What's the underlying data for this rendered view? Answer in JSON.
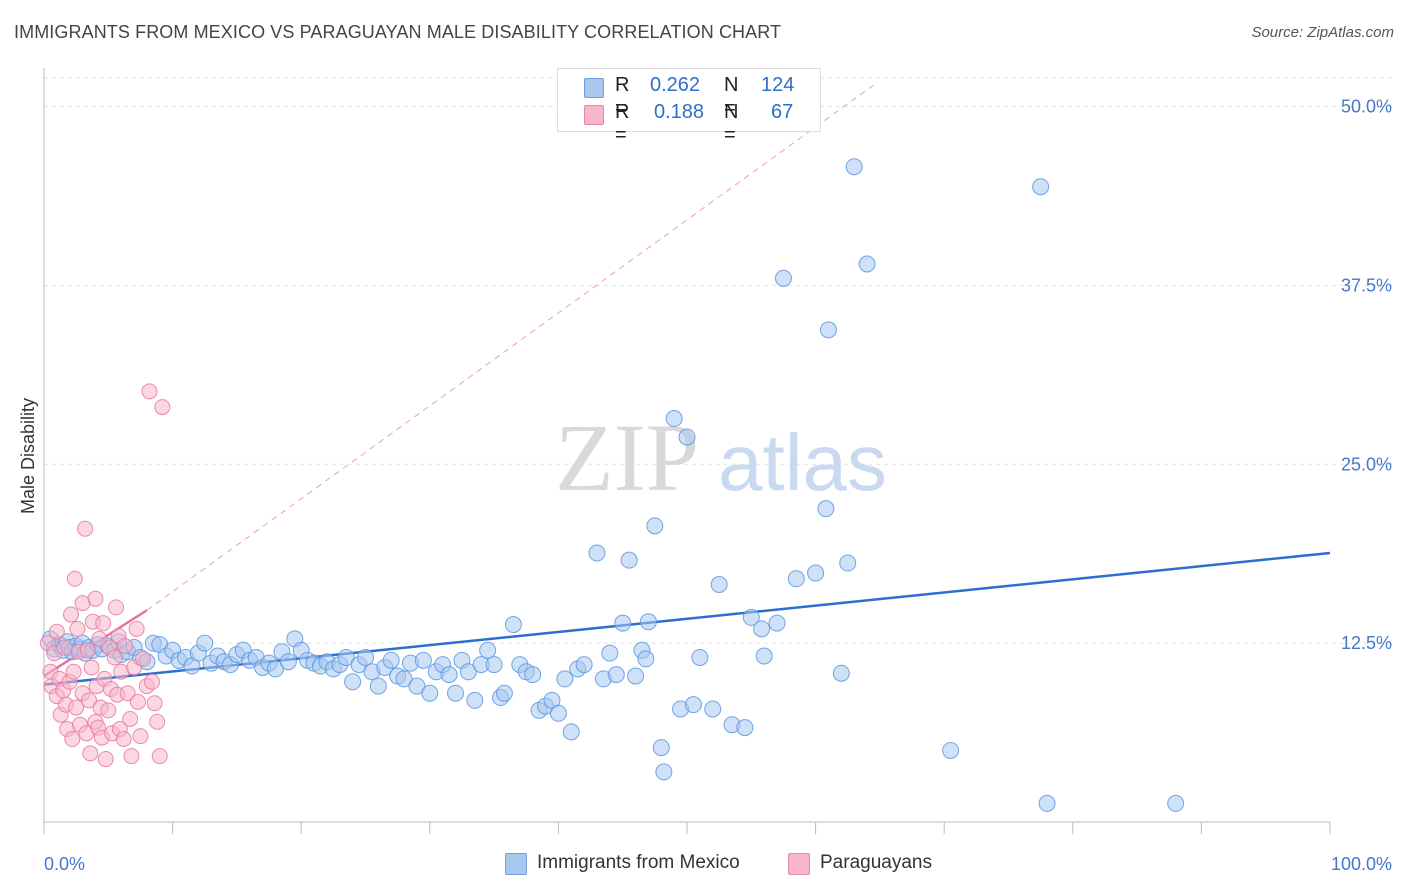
{
  "header": {
    "title": "IMMIGRANTS FROM MEXICO VS PARAGUAYAN MALE DISABILITY CORRELATION CHART",
    "source": "Source: ZipAtlas.com"
  },
  "watermark": {
    "zip": "ZIP",
    "atlas": "atlas"
  },
  "legend": {
    "rows": [
      {
        "r_label": "R =",
        "r_value": "0.262",
        "n_label": "N =",
        "n_value": "124",
        "color": "#a8c8f0"
      },
      {
        "r_label": "R =",
        "r_value": "0.188",
        "n_label": "N =",
        "n_value": "67",
        "color": "#f6b6c8"
      }
    ]
  },
  "bottom_legend": {
    "items": [
      {
        "label": "Immigrants from Mexico",
        "color": "#a8c8f0"
      },
      {
        "label": "Paraguayans",
        "color": "#f6b6c8"
      }
    ]
  },
  "chart_data": {
    "type": "scatter",
    "title": "IMMIGRANTS FROM MEXICO VS PARAGUAYAN MALE DISABILITY CORRELATION CHART",
    "xlabel": "",
    "ylabel": "Male Disability",
    "xlim": [
      0,
      100
    ],
    "ylim": [
      0,
      52
    ],
    "x_tick_labels": [
      "0.0%",
      "100.0%"
    ],
    "y_ticks": [
      12.5,
      25.0,
      37.5,
      50.0
    ],
    "y_tick_labels": [
      "12.5%",
      "25.0%",
      "37.5%",
      "50.0%"
    ],
    "grid": true,
    "series": [
      {
        "name": "Immigrants from Mexico",
        "color": "#5b95e0",
        "fill": "#a8c8f0",
        "points": [
          [
            0.5,
            12.8
          ],
          [
            0.8,
            12.1
          ],
          [
            1.2,
            12.4
          ],
          [
            1.5,
            12.0
          ],
          [
            1.8,
            12.6
          ],
          [
            2.0,
            12.2
          ],
          [
            2.2,
            11.9
          ],
          [
            2.5,
            12.3
          ],
          [
            2.8,
            12.1
          ],
          [
            3.0,
            12.5
          ],
          [
            3.2,
            11.8
          ],
          [
            3.5,
            12.2
          ],
          [
            3.8,
            12.0
          ],
          [
            4.2,
            12.4
          ],
          [
            4.5,
            12.1
          ],
          [
            5.0,
            12.3
          ],
          [
            5.5,
            12.0
          ],
          [
            5.8,
            12.6
          ],
          [
            6.0,
            11.7
          ],
          [
            6.5,
            11.9
          ],
          [
            7.0,
            12.2
          ],
          [
            7.5,
            11.5
          ],
          [
            8.0,
            11.2
          ],
          [
            8.5,
            12.5
          ],
          [
            9.0,
            12.4
          ],
          [
            9.5,
            11.6
          ],
          [
            10.0,
            12.0
          ],
          [
            10.5,
            11.3
          ],
          [
            11.0,
            11.5
          ],
          [
            11.5,
            10.9
          ],
          [
            12.0,
            11.8
          ],
          [
            12.5,
            12.5
          ],
          [
            13.0,
            11.1
          ],
          [
            13.5,
            11.6
          ],
          [
            14.0,
            11.2
          ],
          [
            14.5,
            11.0
          ],
          [
            15.0,
            11.7
          ],
          [
            15.5,
            12.0
          ],
          [
            16.0,
            11.3
          ],
          [
            16.5,
            11.5
          ],
          [
            17.0,
            10.8
          ],
          [
            17.5,
            11.1
          ],
          [
            18.0,
            10.7
          ],
          [
            18.5,
            11.9
          ],
          [
            19.0,
            11.2
          ],
          [
            19.5,
            12.8
          ],
          [
            20.0,
            12.0
          ],
          [
            20.5,
            11.3
          ],
          [
            21.0,
            11.1
          ],
          [
            21.5,
            10.9
          ],
          [
            22.0,
            11.2
          ],
          [
            22.5,
            10.7
          ],
          [
            23.0,
            11.0
          ],
          [
            23.5,
            11.5
          ],
          [
            24.0,
            9.8
          ],
          [
            24.5,
            11.0
          ],
          [
            25.0,
            11.5
          ],
          [
            25.5,
            10.5
          ],
          [
            26.0,
            9.5
          ],
          [
            26.5,
            10.8
          ],
          [
            27.0,
            11.3
          ],
          [
            27.5,
            10.2
          ],
          [
            28.0,
            10.0
          ],
          [
            28.5,
            11.1
          ],
          [
            29.0,
            9.5
          ],
          [
            29.5,
            11.3
          ],
          [
            30.0,
            9.0
          ],
          [
            30.5,
            10.5
          ],
          [
            31.0,
            11.0
          ],
          [
            31.5,
            10.3
          ],
          [
            32.0,
            9.0
          ],
          [
            32.5,
            11.3
          ],
          [
            33.0,
            10.5
          ],
          [
            33.5,
            8.5
          ],
          [
            34.0,
            11.0
          ],
          [
            34.5,
            12.0
          ],
          [
            35.0,
            11.0
          ],
          [
            35.5,
            8.7
          ],
          [
            35.8,
            9.0
          ],
          [
            36.5,
            13.8
          ],
          [
            37.0,
            11.0
          ],
          [
            37.5,
            10.5
          ],
          [
            38.0,
            10.3
          ],
          [
            38.5,
            7.8
          ],
          [
            39.0,
            8.1
          ],
          [
            39.5,
            8.5
          ],
          [
            40.0,
            7.6
          ],
          [
            40.5,
            10.0
          ],
          [
            41.0,
            6.3
          ],
          [
            41.5,
            10.7
          ],
          [
            42.0,
            11.0
          ],
          [
            43.0,
            18.8
          ],
          [
            43.5,
            10.0
          ],
          [
            44.0,
            11.8
          ],
          [
            44.5,
            10.3
          ],
          [
            45.0,
            13.9
          ],
          [
            45.5,
            18.3
          ],
          [
            46.0,
            10.2
          ],
          [
            46.5,
            12.0
          ],
          [
            46.8,
            11.4
          ],
          [
            47.0,
            14.0
          ],
          [
            47.5,
            20.7
          ],
          [
            48.0,
            5.2
          ],
          [
            48.2,
            3.5
          ],
          [
            49.0,
            28.2
          ],
          [
            49.5,
            7.9
          ],
          [
            50.0,
            26.9
          ],
          [
            50.5,
            8.2
          ],
          [
            51.0,
            11.5
          ],
          [
            52.0,
            7.9
          ],
          [
            52.5,
            16.6
          ],
          [
            53.5,
            6.8
          ],
          [
            54.5,
            6.6
          ],
          [
            55.0,
            14.3
          ],
          [
            55.8,
            13.5
          ],
          [
            56.0,
            11.6
          ],
          [
            57.0,
            13.9
          ],
          [
            57.5,
            38.0
          ],
          [
            58.5,
            17.0
          ],
          [
            60.0,
            17.4
          ],
          [
            60.8,
            21.9
          ],
          [
            61.0,
            34.4
          ],
          [
            62.0,
            10.4
          ],
          [
            62.5,
            18.1
          ],
          [
            63.0,
            45.8
          ],
          [
            64.0,
            39.0
          ],
          [
            70.5,
            5.0
          ],
          [
            77.5,
            44.4
          ],
          [
            78.0,
            1.3
          ],
          [
            88.0,
            1.3
          ]
        ]
      },
      {
        "name": "Paraguayans",
        "color": "#e87a9c",
        "fill": "#f6b6c8",
        "points": [
          [
            0.3,
            12.5
          ],
          [
            0.5,
            10.5
          ],
          [
            0.6,
            9.5
          ],
          [
            0.8,
            11.8
          ],
          [
            1.0,
            13.3
          ],
          [
            1.0,
            8.8
          ],
          [
            1.2,
            10.0
          ],
          [
            1.3,
            7.5
          ],
          [
            1.5,
            9.2
          ],
          [
            1.6,
            12.2
          ],
          [
            1.7,
            8.2
          ],
          [
            1.8,
            6.5
          ],
          [
            2.0,
            9.8
          ],
          [
            2.1,
            14.5
          ],
          [
            2.2,
            5.8
          ],
          [
            2.3,
            10.5
          ],
          [
            2.4,
            17.0
          ],
          [
            2.5,
            8.0
          ],
          [
            2.6,
            13.5
          ],
          [
            2.7,
            11.9
          ],
          [
            2.8,
            6.8
          ],
          [
            3.0,
            15.3
          ],
          [
            3.0,
            9.0
          ],
          [
            3.2,
            20.5
          ],
          [
            3.3,
            6.2
          ],
          [
            3.4,
            12.0
          ],
          [
            3.5,
            8.5
          ],
          [
            3.6,
            4.8
          ],
          [
            3.7,
            10.8
          ],
          [
            3.8,
            14.0
          ],
          [
            4.0,
            7.0
          ],
          [
            4.0,
            15.6
          ],
          [
            4.1,
            9.5
          ],
          [
            4.2,
            6.6
          ],
          [
            4.3,
            12.8
          ],
          [
            4.4,
            8.0
          ],
          [
            4.5,
            5.9
          ],
          [
            4.6,
            13.9
          ],
          [
            4.7,
            10.0
          ],
          [
            4.8,
            4.4
          ],
          [
            5.0,
            7.8
          ],
          [
            5.1,
            12.2
          ],
          [
            5.2,
            9.3
          ],
          [
            5.3,
            6.2
          ],
          [
            5.5,
            11.5
          ],
          [
            5.6,
            15.0
          ],
          [
            5.7,
            8.9
          ],
          [
            5.8,
            13.0
          ],
          [
            5.9,
            6.5
          ],
          [
            6.0,
            10.5
          ],
          [
            6.2,
            5.8
          ],
          [
            6.3,
            12.3
          ],
          [
            6.5,
            9.0
          ],
          [
            6.7,
            7.2
          ],
          [
            6.8,
            4.6
          ],
          [
            7.0,
            10.8
          ],
          [
            7.2,
            13.5
          ],
          [
            7.3,
            8.4
          ],
          [
            7.5,
            6.0
          ],
          [
            7.7,
            11.4
          ],
          [
            8.0,
            9.5
          ],
          [
            8.2,
            30.1
          ],
          [
            8.4,
            9.8
          ],
          [
            8.6,
            8.3
          ],
          [
            8.8,
            7.0
          ],
          [
            9.0,
            4.6
          ],
          [
            9.2,
            29.0
          ]
        ]
      }
    ],
    "trend_lines": [
      {
        "series": "Immigrants from Mexico",
        "style": "solid",
        "from": [
          0,
          9.6
        ],
        "to": [
          100,
          18.8
        ]
      },
      {
        "series": "Paraguayans",
        "style": "solid",
        "from": [
          0,
          10.2
        ],
        "to": [
          8,
          14.8
        ]
      },
      {
        "series": "Paraguayans",
        "style": "dashed",
        "from": [
          8,
          14.8
        ],
        "to": [
          64.5,
          51.5
        ]
      }
    ]
  }
}
